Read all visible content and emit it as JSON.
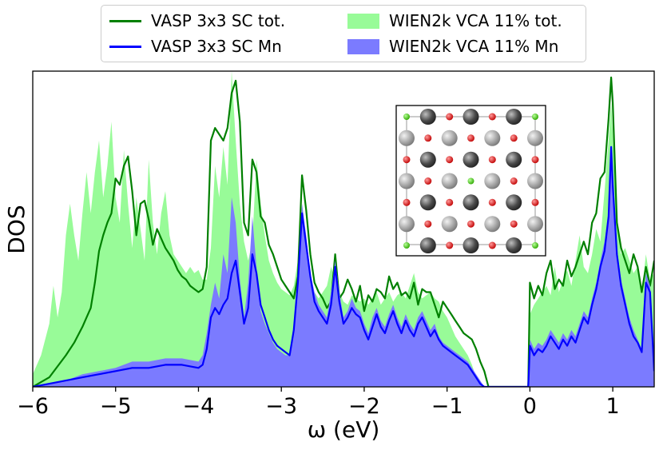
{
  "chart_data": {
    "type": "area",
    "title": "",
    "xlabel": "ω (eV)",
    "ylabel": "DOS",
    "xlim": [
      -6,
      1.5
    ],
    "ylim": [
      0,
      1.0
    ],
    "xticks": [
      -6,
      -5,
      -4,
      -3,
      -2,
      -1,
      0,
      1
    ],
    "xtick_labels": [
      "−6",
      "−5",
      "−4",
      "−3",
      "−2",
      "−1",
      "0",
      "1"
    ],
    "legend_position": "top-center",
    "series": [
      {
        "name": "VASP 3x3 SC tot.",
        "kind": "line",
        "color": "#008000",
        "x": [
          -6.0,
          -5.8,
          -5.6,
          -5.5,
          -5.4,
          -5.35,
          -5.3,
          -5.25,
          -5.2,
          -5.15,
          -5.1,
          -5.05,
          -5.0,
          -4.95,
          -4.9,
          -4.85,
          -4.8,
          -4.75,
          -4.7,
          -4.65,
          -4.6,
          -4.55,
          -4.5,
          -4.45,
          -4.4,
          -4.35,
          -4.3,
          -4.25,
          -4.2,
          -4.15,
          -4.1,
          -4.05,
          -4.0,
          -3.95,
          -3.9,
          -3.85,
          -3.8,
          -3.75,
          -3.7,
          -3.65,
          -3.6,
          -3.55,
          -3.5,
          -3.45,
          -3.4,
          -3.35,
          -3.3,
          -3.25,
          -3.2,
          -3.15,
          -3.1,
          -3.05,
          -3.0,
          -2.95,
          -2.9,
          -2.85,
          -2.8,
          -2.75,
          -2.7,
          -2.65,
          -2.6,
          -2.55,
          -2.5,
          -2.45,
          -2.4,
          -2.35,
          -2.3,
          -2.25,
          -2.2,
          -2.15,
          -2.1,
          -2.05,
          -2.0,
          -1.95,
          -1.9,
          -1.85,
          -1.8,
          -1.75,
          -1.7,
          -1.65,
          -1.6,
          -1.55,
          -1.5,
          -1.45,
          -1.4,
          -1.35,
          -1.3,
          -1.25,
          -1.2,
          -1.15,
          -1.1,
          -1.05,
          -1.0,
          -0.95,
          -0.9,
          -0.85,
          -0.8,
          -0.75,
          -0.7,
          -0.65,
          -0.6,
          -0.55,
          -0.5,
          -0.02,
          0.0,
          0.05,
          0.1,
          0.15,
          0.2,
          0.25,
          0.3,
          0.35,
          0.4,
          0.45,
          0.5,
          0.55,
          0.6,
          0.65,
          0.7,
          0.75,
          0.8,
          0.85,
          0.9,
          0.95,
          0.98,
          1.0,
          1.05,
          1.1,
          1.15,
          1.2,
          1.25,
          1.3,
          1.35,
          1.4,
          1.45,
          1.5
        ],
        "values": [
          0.0,
          0.03,
          0.1,
          0.14,
          0.19,
          0.22,
          0.25,
          0.33,
          0.43,
          0.48,
          0.52,
          0.55,
          0.66,
          0.64,
          0.7,
          0.73,
          0.62,
          0.48,
          0.58,
          0.59,
          0.53,
          0.45,
          0.5,
          0.47,
          0.44,
          0.42,
          0.4,
          0.37,
          0.35,
          0.34,
          0.32,
          0.31,
          0.3,
          0.31,
          0.38,
          0.78,
          0.82,
          0.8,
          0.78,
          0.82,
          0.93,
          0.97,
          0.84,
          0.52,
          0.48,
          0.72,
          0.68,
          0.54,
          0.52,
          0.45,
          0.42,
          0.38,
          0.34,
          0.32,
          0.3,
          0.28,
          0.35,
          0.67,
          0.56,
          0.42,
          0.33,
          0.3,
          0.28,
          0.25,
          0.27,
          0.42,
          0.28,
          0.3,
          0.34,
          0.31,
          0.27,
          0.32,
          0.24,
          0.29,
          0.27,
          0.31,
          0.3,
          0.28,
          0.35,
          0.31,
          0.33,
          0.29,
          0.3,
          0.28,
          0.33,
          0.26,
          0.31,
          0.3,
          0.3,
          0.26,
          0.22,
          0.27,
          0.25,
          0.23,
          0.21,
          0.19,
          0.17,
          0.16,
          0.15,
          0.12,
          0.08,
          0.05,
          0.0,
          0.0,
          0.33,
          0.28,
          0.32,
          0.29,
          0.36,
          0.4,
          0.31,
          0.34,
          0.32,
          0.4,
          0.35,
          0.38,
          0.42,
          0.46,
          0.42,
          0.52,
          0.55,
          0.66,
          0.68,
          0.85,
          0.98,
          0.9,
          0.52,
          0.44,
          0.4,
          0.36,
          0.42,
          0.38,
          0.3,
          0.38,
          0.32,
          0.4
        ]
      },
      {
        "name": "VASP 3x3 SC Mn",
        "kind": "line",
        "color": "#0000ff",
        "x": [
          -6.0,
          -5.8,
          -5.6,
          -5.4,
          -5.2,
          -5.0,
          -4.8,
          -4.6,
          -4.4,
          -4.2,
          -4.0,
          -3.95,
          -3.9,
          -3.85,
          -3.8,
          -3.75,
          -3.7,
          -3.65,
          -3.6,
          -3.55,
          -3.5,
          -3.45,
          -3.4,
          -3.35,
          -3.3,
          -3.25,
          -3.2,
          -3.15,
          -3.1,
          -3.05,
          -3.0,
          -2.95,
          -2.9,
          -2.85,
          -2.8,
          -2.75,
          -2.7,
          -2.65,
          -2.6,
          -2.55,
          -2.5,
          -2.45,
          -2.4,
          -2.35,
          -2.3,
          -2.25,
          -2.2,
          -2.15,
          -2.1,
          -2.05,
          -2.0,
          -1.95,
          -1.9,
          -1.85,
          -1.8,
          -1.75,
          -1.7,
          -1.65,
          -1.6,
          -1.55,
          -1.5,
          -1.45,
          -1.4,
          -1.35,
          -1.3,
          -1.25,
          -1.2,
          -1.15,
          -1.1,
          -1.05,
          -1.0,
          -0.95,
          -0.9,
          -0.85,
          -0.8,
          -0.75,
          -0.7,
          -0.65,
          -0.6,
          -0.55,
          -0.5,
          -0.02,
          0.0,
          0.05,
          0.1,
          0.15,
          0.2,
          0.25,
          0.3,
          0.35,
          0.4,
          0.45,
          0.5,
          0.55,
          0.6,
          0.65,
          0.7,
          0.75,
          0.8,
          0.85,
          0.9,
          0.95,
          0.98,
          1.0,
          1.05,
          1.1,
          1.15,
          1.2,
          1.25,
          1.3,
          1.35,
          1.4,
          1.45,
          1.5
        ],
        "values": [
          0.0,
          0.01,
          0.02,
          0.03,
          0.04,
          0.05,
          0.06,
          0.06,
          0.07,
          0.07,
          0.06,
          0.07,
          0.12,
          0.22,
          0.25,
          0.23,
          0.26,
          0.28,
          0.36,
          0.4,
          0.3,
          0.2,
          0.25,
          0.42,
          0.36,
          0.26,
          0.22,
          0.18,
          0.15,
          0.13,
          0.12,
          0.11,
          0.1,
          0.18,
          0.33,
          0.55,
          0.45,
          0.35,
          0.27,
          0.24,
          0.22,
          0.2,
          0.26,
          0.38,
          0.27,
          0.2,
          0.22,
          0.25,
          0.23,
          0.22,
          0.18,
          0.15,
          0.19,
          0.23,
          0.19,
          0.17,
          0.21,
          0.24,
          0.2,
          0.17,
          0.21,
          0.18,
          0.16,
          0.2,
          0.22,
          0.19,
          0.16,
          0.18,
          0.15,
          0.13,
          0.12,
          0.11,
          0.1,
          0.09,
          0.08,
          0.07,
          0.05,
          0.03,
          0.01,
          0.0,
          0.0,
          0.0,
          0.13,
          0.1,
          0.12,
          0.11,
          0.13,
          0.16,
          0.14,
          0.12,
          0.15,
          0.13,
          0.16,
          0.14,
          0.18,
          0.22,
          0.2,
          0.26,
          0.31,
          0.38,
          0.43,
          0.54,
          0.76,
          0.64,
          0.42,
          0.32,
          0.26,
          0.2,
          0.16,
          0.14,
          0.11,
          0.33,
          0.3,
          0.05
        ]
      },
      {
        "name": "WIEN2k VCA 11% tot.",
        "kind": "area",
        "color": "#98fb98",
        "x": [
          -6.0,
          -5.9,
          -5.8,
          -5.75,
          -5.7,
          -5.65,
          -5.6,
          -5.55,
          -5.5,
          -5.45,
          -5.4,
          -5.35,
          -5.3,
          -5.25,
          -5.2,
          -5.15,
          -5.1,
          -5.05,
          -5.0,
          -4.95,
          -4.9,
          -4.85,
          -4.8,
          -4.75,
          -4.7,
          -4.65,
          -4.6,
          -4.55,
          -4.5,
          -4.45,
          -4.4,
          -4.35,
          -4.3,
          -4.25,
          -4.2,
          -4.15,
          -4.1,
          -4.05,
          -4.0,
          -3.95,
          -3.9,
          -3.85,
          -3.8,
          -3.75,
          -3.7,
          -3.65,
          -3.6,
          -3.55,
          -3.5,
          -3.45,
          -3.4,
          -3.35,
          -3.3,
          -3.25,
          -3.2,
          -3.15,
          -3.1,
          -3.05,
          -3.0,
          -2.95,
          -2.9,
          -2.85,
          -2.8,
          -2.75,
          -2.7,
          -2.65,
          -2.6,
          -2.55,
          -2.5,
          -2.45,
          -2.4,
          -2.35,
          -2.3,
          -2.25,
          -2.2,
          -2.15,
          -2.1,
          -2.05,
          -2.0,
          -1.95,
          -1.9,
          -1.85,
          -1.8,
          -1.75,
          -1.7,
          -1.65,
          -1.6,
          -1.55,
          -1.5,
          -1.45,
          -1.4,
          -1.35,
          -1.3,
          -1.25,
          -1.2,
          -1.15,
          -1.1,
          -1.05,
          -1.0,
          -0.95,
          -0.9,
          -0.85,
          -0.8,
          -0.75,
          -0.7,
          -0.65,
          -0.6,
          -0.55,
          -0.5,
          -0.02,
          0.0,
          0.05,
          0.1,
          0.15,
          0.2,
          0.25,
          0.3,
          0.35,
          0.4,
          0.45,
          0.5,
          0.55,
          0.6,
          0.65,
          0.7,
          0.75,
          0.8,
          0.85,
          0.9,
          0.95,
          0.98,
          1.0,
          1.05,
          1.1,
          1.15,
          1.2,
          1.25,
          1.3,
          1.35,
          1.4,
          1.45,
          1.5
        ],
        "values": [
          0.04,
          0.1,
          0.2,
          0.32,
          0.22,
          0.3,
          0.48,
          0.58,
          0.48,
          0.4,
          0.55,
          0.68,
          0.55,
          0.68,
          0.78,
          0.6,
          0.7,
          0.84,
          0.6,
          0.52,
          0.75,
          0.58,
          0.44,
          0.6,
          0.5,
          0.4,
          0.72,
          0.52,
          0.42,
          0.55,
          0.62,
          0.48,
          0.42,
          0.4,
          0.38,
          0.36,
          0.38,
          0.36,
          0.37,
          0.34,
          0.34,
          0.44,
          0.7,
          0.6,
          0.76,
          0.64,
          1.0,
          0.78,
          0.58,
          0.46,
          0.4,
          0.46,
          0.72,
          0.58,
          0.48,
          0.4,
          0.36,
          0.33,
          0.31,
          0.3,
          0.29,
          0.32,
          0.4,
          0.52,
          0.46,
          0.36,
          0.3,
          0.28,
          0.3,
          0.32,
          0.38,
          0.34,
          0.3,
          0.27,
          0.26,
          0.29,
          0.28,
          0.27,
          0.28,
          0.26,
          0.28,
          0.3,
          0.26,
          0.28,
          0.3,
          0.27,
          0.29,
          0.3,
          0.28,
          0.32,
          0.36,
          0.3,
          0.28,
          0.29,
          0.3,
          0.28,
          0.27,
          0.24,
          0.22,
          0.19,
          0.16,
          0.14,
          0.12,
          0.1,
          0.07,
          0.03,
          0.0,
          0.0,
          0.0,
          0.0,
          0.23,
          0.26,
          0.28,
          0.3,
          0.32,
          0.29,
          0.38,
          0.3,
          0.34,
          0.37,
          0.32,
          0.4,
          0.48,
          0.38,
          0.36,
          0.42,
          0.5,
          0.46,
          0.62,
          0.78,
          0.9,
          0.8,
          0.52,
          0.42,
          0.44,
          0.4,
          0.36,
          0.38,
          0.3,
          0.42,
          0.34,
          0.36
        ]
      },
      {
        "name": "WIEN2k VCA 11% Mn",
        "kind": "area",
        "color": "#7b7bff",
        "x": [
          -6.0,
          -5.8,
          -5.6,
          -5.4,
          -5.2,
          -5.0,
          -4.8,
          -4.6,
          -4.4,
          -4.2,
          -4.0,
          -3.95,
          -3.9,
          -3.85,
          -3.8,
          -3.75,
          -3.7,
          -3.65,
          -3.6,
          -3.55,
          -3.5,
          -3.45,
          -3.4,
          -3.35,
          -3.3,
          -3.25,
          -3.2,
          -3.15,
          -3.1,
          -3.05,
          -3.0,
          -2.95,
          -2.9,
          -2.85,
          -2.8,
          -2.75,
          -2.7,
          -2.65,
          -2.6,
          -2.55,
          -2.5,
          -2.45,
          -2.4,
          -2.35,
          -2.3,
          -2.25,
          -2.2,
          -2.15,
          -2.1,
          -2.05,
          -2.0,
          -1.95,
          -1.9,
          -1.85,
          -1.8,
          -1.75,
          -1.7,
          -1.65,
          -1.6,
          -1.55,
          -1.5,
          -1.45,
          -1.4,
          -1.35,
          -1.3,
          -1.25,
          -1.2,
          -1.15,
          -1.1,
          -1.05,
          -1.0,
          -0.95,
          -0.9,
          -0.85,
          -0.8,
          -0.75,
          -0.7,
          -0.65,
          -0.6,
          -0.55,
          -0.5,
          -0.02,
          0.0,
          0.05,
          0.1,
          0.15,
          0.2,
          0.25,
          0.3,
          0.35,
          0.4,
          0.45,
          0.5,
          0.55,
          0.6,
          0.65,
          0.7,
          0.75,
          0.8,
          0.85,
          0.9,
          0.95,
          0.98,
          1.0,
          1.05,
          1.1,
          1.15,
          1.2,
          1.25,
          1.3,
          1.35,
          1.4,
          1.45,
          1.5
        ],
        "values": [
          0.0,
          0.01,
          0.02,
          0.04,
          0.05,
          0.06,
          0.08,
          0.08,
          0.09,
          0.09,
          0.08,
          0.1,
          0.17,
          0.26,
          0.33,
          0.28,
          0.42,
          0.36,
          0.6,
          0.52,
          0.34,
          0.22,
          0.33,
          0.54,
          0.38,
          0.24,
          0.2,
          0.17,
          0.14,
          0.12,
          0.11,
          0.1,
          0.1,
          0.2,
          0.35,
          0.58,
          0.48,
          0.36,
          0.3,
          0.26,
          0.24,
          0.22,
          0.3,
          0.4,
          0.3,
          0.22,
          0.24,
          0.28,
          0.25,
          0.24,
          0.2,
          0.17,
          0.22,
          0.25,
          0.21,
          0.19,
          0.23,
          0.26,
          0.22,
          0.19,
          0.23,
          0.2,
          0.18,
          0.22,
          0.24,
          0.21,
          0.18,
          0.2,
          0.16,
          0.14,
          0.13,
          0.12,
          0.11,
          0.1,
          0.09,
          0.08,
          0.06,
          0.04,
          0.02,
          0.0,
          0.0,
          0.0,
          0.15,
          0.12,
          0.14,
          0.13,
          0.15,
          0.18,
          0.16,
          0.14,
          0.17,
          0.15,
          0.18,
          0.16,
          0.2,
          0.24,
          0.22,
          0.28,
          0.33,
          0.4,
          0.46,
          0.56,
          0.74,
          0.66,
          0.44,
          0.34,
          0.28,
          0.22,
          0.18,
          0.15,
          0.12,
          0.36,
          0.32,
          0.06
        ]
      }
    ],
    "inset": {
      "description": "crystal lattice",
      "rows": 7,
      "cols": 7
    }
  },
  "legend": {
    "items": [
      {
        "label": "VASP 3x3 SC tot.",
        "color": "#008000",
        "kind": "line"
      },
      {
        "label": "WIEN2k VCA 11% tot.",
        "color": "#98fb98",
        "kind": "fill"
      },
      {
        "label": "VASP 3x3 SC Mn",
        "color": "#0000ff",
        "kind": "line"
      },
      {
        "label": "WIEN2k VCA 11% Mn",
        "color": "#7b7bff",
        "kind": "fill"
      }
    ]
  }
}
